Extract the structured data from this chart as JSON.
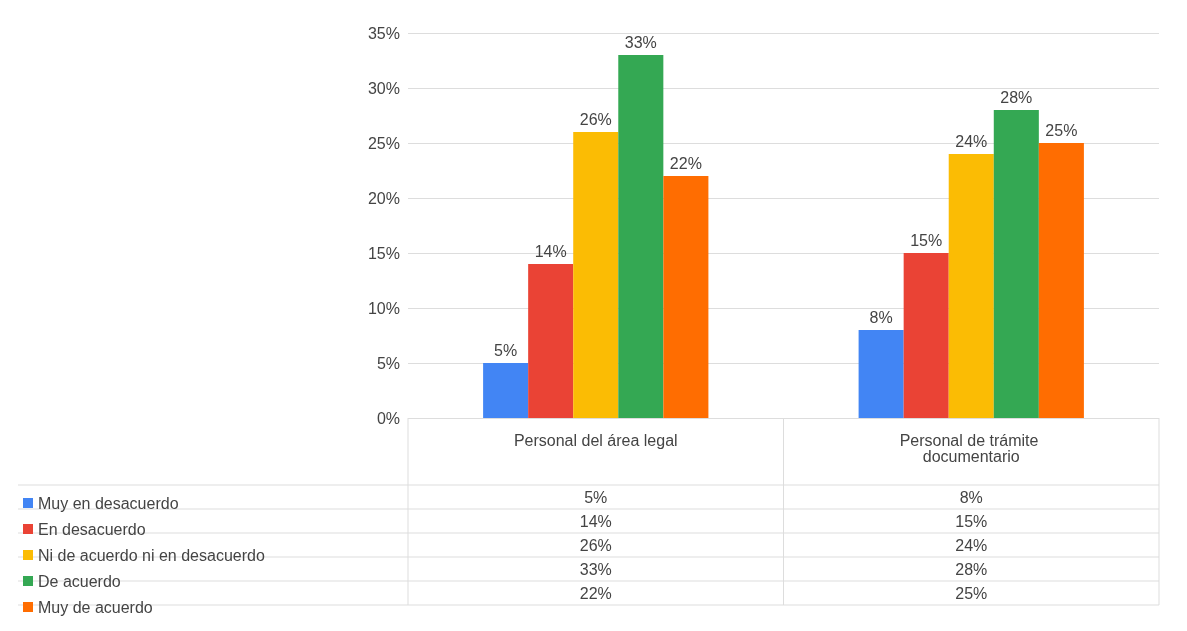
{
  "chart_data": {
    "type": "bar",
    "categories": [
      "Personal del área legal",
      "Personal de trámite documentario"
    ],
    "series": [
      {
        "name": "Muy en desacuerdo",
        "color": "#4285f4",
        "values": [
          5,
          8
        ],
        "value_labels": [
          "5%",
          "8%"
        ]
      },
      {
        "name": "En desacuerdo",
        "color": "#ea4335",
        "values": [
          14,
          15
        ],
        "value_labels": [
          "14%",
          "15%"
        ]
      },
      {
        "name": "Ni de acuerdo ni en desacuerdo",
        "color": "#fbbc04",
        "values": [
          26,
          24
        ],
        "value_labels": [
          "26%",
          "24%"
        ]
      },
      {
        "name": "De acuerdo",
        "color": "#34a853",
        "values": [
          33,
          28
        ],
        "value_labels": [
          "33%",
          "28%"
        ]
      },
      {
        "name": "Muy de acuerdo",
        "color": "#ff6d01",
        "values": [
          22,
          25
        ],
        "value_labels": [
          "22%",
          "25%"
        ]
      }
    ],
    "ylim": [
      0,
      35
    ],
    "yticks": [
      {
        "value": 0,
        "label": "0%"
      },
      {
        "value": 5,
        "label": "5%"
      },
      {
        "value": 10,
        "label": "10%"
      },
      {
        "value": 15,
        "label": "15%"
      },
      {
        "value": 20,
        "label": "20%"
      },
      {
        "value": 25,
        "label": "25%"
      },
      {
        "value": 30,
        "label": "30%"
      },
      {
        "value": 35,
        "label": "35%"
      }
    ],
    "grid": true,
    "legend": "bottom left"
  }
}
